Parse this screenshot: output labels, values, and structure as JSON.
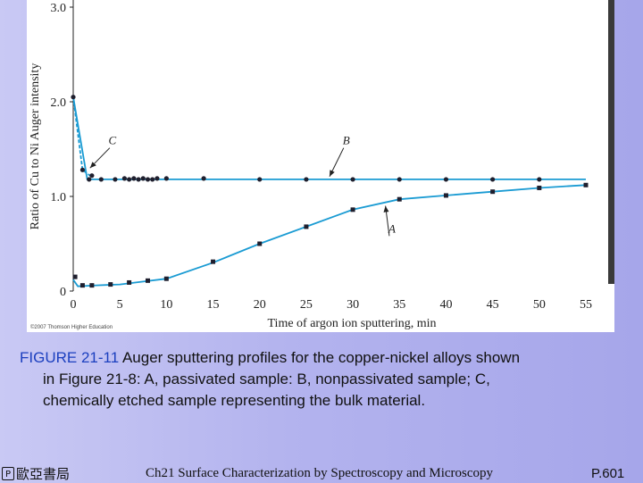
{
  "chart_data": {
    "type": "line",
    "title": "",
    "xlabel": "Time of argon ion sputtering, min",
    "ylabel": "Ratio of Cu to Ni Auger intensity",
    "xlim": [
      0,
      55
    ],
    "ylim": [
      0,
      3.0
    ],
    "x_ticks": [
      "0",
      "5",
      "10",
      "15",
      "20",
      "25",
      "30",
      "35",
      "40",
      "45",
      "50",
      "55"
    ],
    "y_ticks": [
      "0",
      "1.0",
      "2.0",
      "3.0"
    ],
    "grid": false,
    "series": [
      {
        "name": "B",
        "line": {
          "x": [
            0,
            1.5,
            55
          ],
          "y": [
            2.05,
            1.18,
            1.18
          ]
        },
        "points": {
          "x": [
            1.7,
            3.0,
            4.5,
            5.5,
            6.0,
            6.5,
            7.0,
            7.5,
            8.0,
            8.5,
            9.0,
            10.0,
            14.0,
            20.0,
            25.0,
            30.0,
            35.0,
            40.0,
            45.0,
            50.0
          ],
          "y": [
            1.18,
            1.18,
            1.18,
            1.19,
            1.18,
            1.19,
            1.18,
            1.19,
            1.18,
            1.18,
            1.19,
            1.19,
            1.19,
            1.18,
            1.18,
            1.18,
            1.18,
            1.18,
            1.18,
            1.18
          ]
        }
      },
      {
        "name": "C",
        "line": {
          "x": [
            0,
            1.0,
            1.8
          ],
          "y": [
            2.05,
            1.28,
            1.22
          ]
        },
        "points": {
          "x": [
            0.0,
            1.0,
            2.0
          ],
          "y": [
            2.05,
            1.28,
            1.22
          ]
        }
      },
      {
        "name": "A",
        "line": {
          "x": [
            0,
            0.5,
            2.5,
            5,
            7.5,
            10,
            15,
            20,
            25,
            30,
            35,
            40,
            45,
            50,
            55
          ],
          "y": [
            0.12,
            0.05,
            0.06,
            0.07,
            0.1,
            0.13,
            0.3,
            0.5,
            0.68,
            0.86,
            0.97,
            1.01,
            1.05,
            1.09,
            1.12
          ]
        },
        "points": {
          "x": [
            0.2,
            1.0,
            2.0,
            4.0,
            6.0,
            8.0,
            10.0,
            15.0,
            20.0,
            25.0,
            30.0,
            35.0,
            40.0,
            45.0,
            50.0,
            55.0
          ],
          "y": [
            0.15,
            0.06,
            0.06,
            0.07,
            0.09,
            0.11,
            0.13,
            0.31,
            0.5,
            0.68,
            0.86,
            0.97,
            1.01,
            1.05,
            1.09,
            1.12
          ]
        }
      }
    ],
    "annotations": [
      {
        "text": "C",
        "target_x": 1.8,
        "target_y": 1.3,
        "text_x": 4.2,
        "text_y": 1.55
      },
      {
        "text": "B",
        "target_x": 27.5,
        "target_y": 1.21,
        "text_x": 29.3,
        "text_y": 1.55
      },
      {
        "text": "A",
        "target_x": 33.5,
        "target_y": 0.9,
        "text_x": 34.2,
        "text_y": 0.62
      }
    ],
    "colors": {
      "line": "#1a9bd3",
      "point": "#1f1f2e"
    }
  },
  "credit": "©2007 Thomson Higher Education",
  "caption": {
    "fig_label": "FIGURE 21-11",
    "line1_rest": "Auger sputtering profiles for the copper-nickel alloys shown",
    "line2": "in Figure 21-8: A, passivated sample: B, nonpassivated sample; C,",
    "line3": "chemically etched sample representing the bulk material."
  },
  "footer": {
    "logo_icon": "publisher-logo-icon",
    "publisher": "歐亞書局",
    "title": "Ch21 Surface Characterization by Spectroscopy and Microscopy",
    "page": "P.601"
  }
}
